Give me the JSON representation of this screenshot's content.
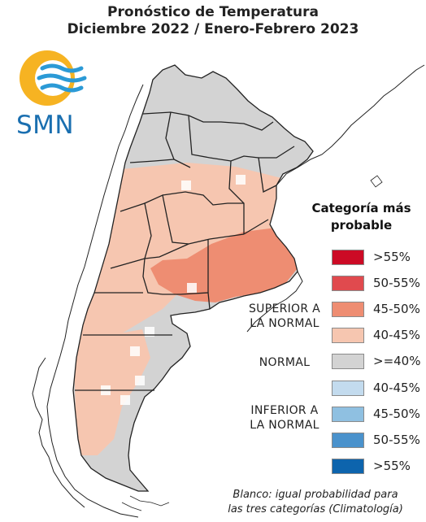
{
  "title": {
    "line1": "Pronóstico de Temperatura",
    "line2": "Diciembre 2022 / Enero-Febrero 2023"
  },
  "logo": {
    "text": "SMN",
    "icon": "smn-sun-waves-logo"
  },
  "legend": {
    "title_line1": "Categoría más",
    "title_line2": "probable",
    "items": [
      {
        "label": ">55%",
        "color": "#cc0a25"
      },
      {
        "label": "50-55%",
        "color": "#e04a4e"
      },
      {
        "label": "45-50%",
        "color": "#ee8d72"
      },
      {
        "label": "40-45%",
        "color": "#f6c6b0"
      },
      {
        "label": ">=40%",
        "color": "#d3d3d3"
      },
      {
        "label": "40-45%",
        "color": "#c3dbee"
      },
      {
        "label": "45-50%",
        "color": "#8fc0e1"
      },
      {
        "label": "50-55%",
        "color": "#4a92cc"
      },
      {
        "label": ">55%",
        "color": "#0d64ad"
      }
    ],
    "categories": {
      "superior_line1": "SUPERIOR A",
      "superior_line2": "LA NORMAL",
      "normal": "NORMAL",
      "inferior_line1": "INFERIOR A",
      "inferior_line2": "LA NORMAL"
    }
  },
  "note": {
    "line1": "Blanco: igual probabilidad para",
    "line2": "las tres categorías (Climatología)"
  },
  "colors": {
    "above_40_45": "#f6c6b0",
    "above_45_50": "#ee8d72",
    "normal": "#d3d3d3",
    "white": "#ffffff",
    "border": "#222222"
  }
}
